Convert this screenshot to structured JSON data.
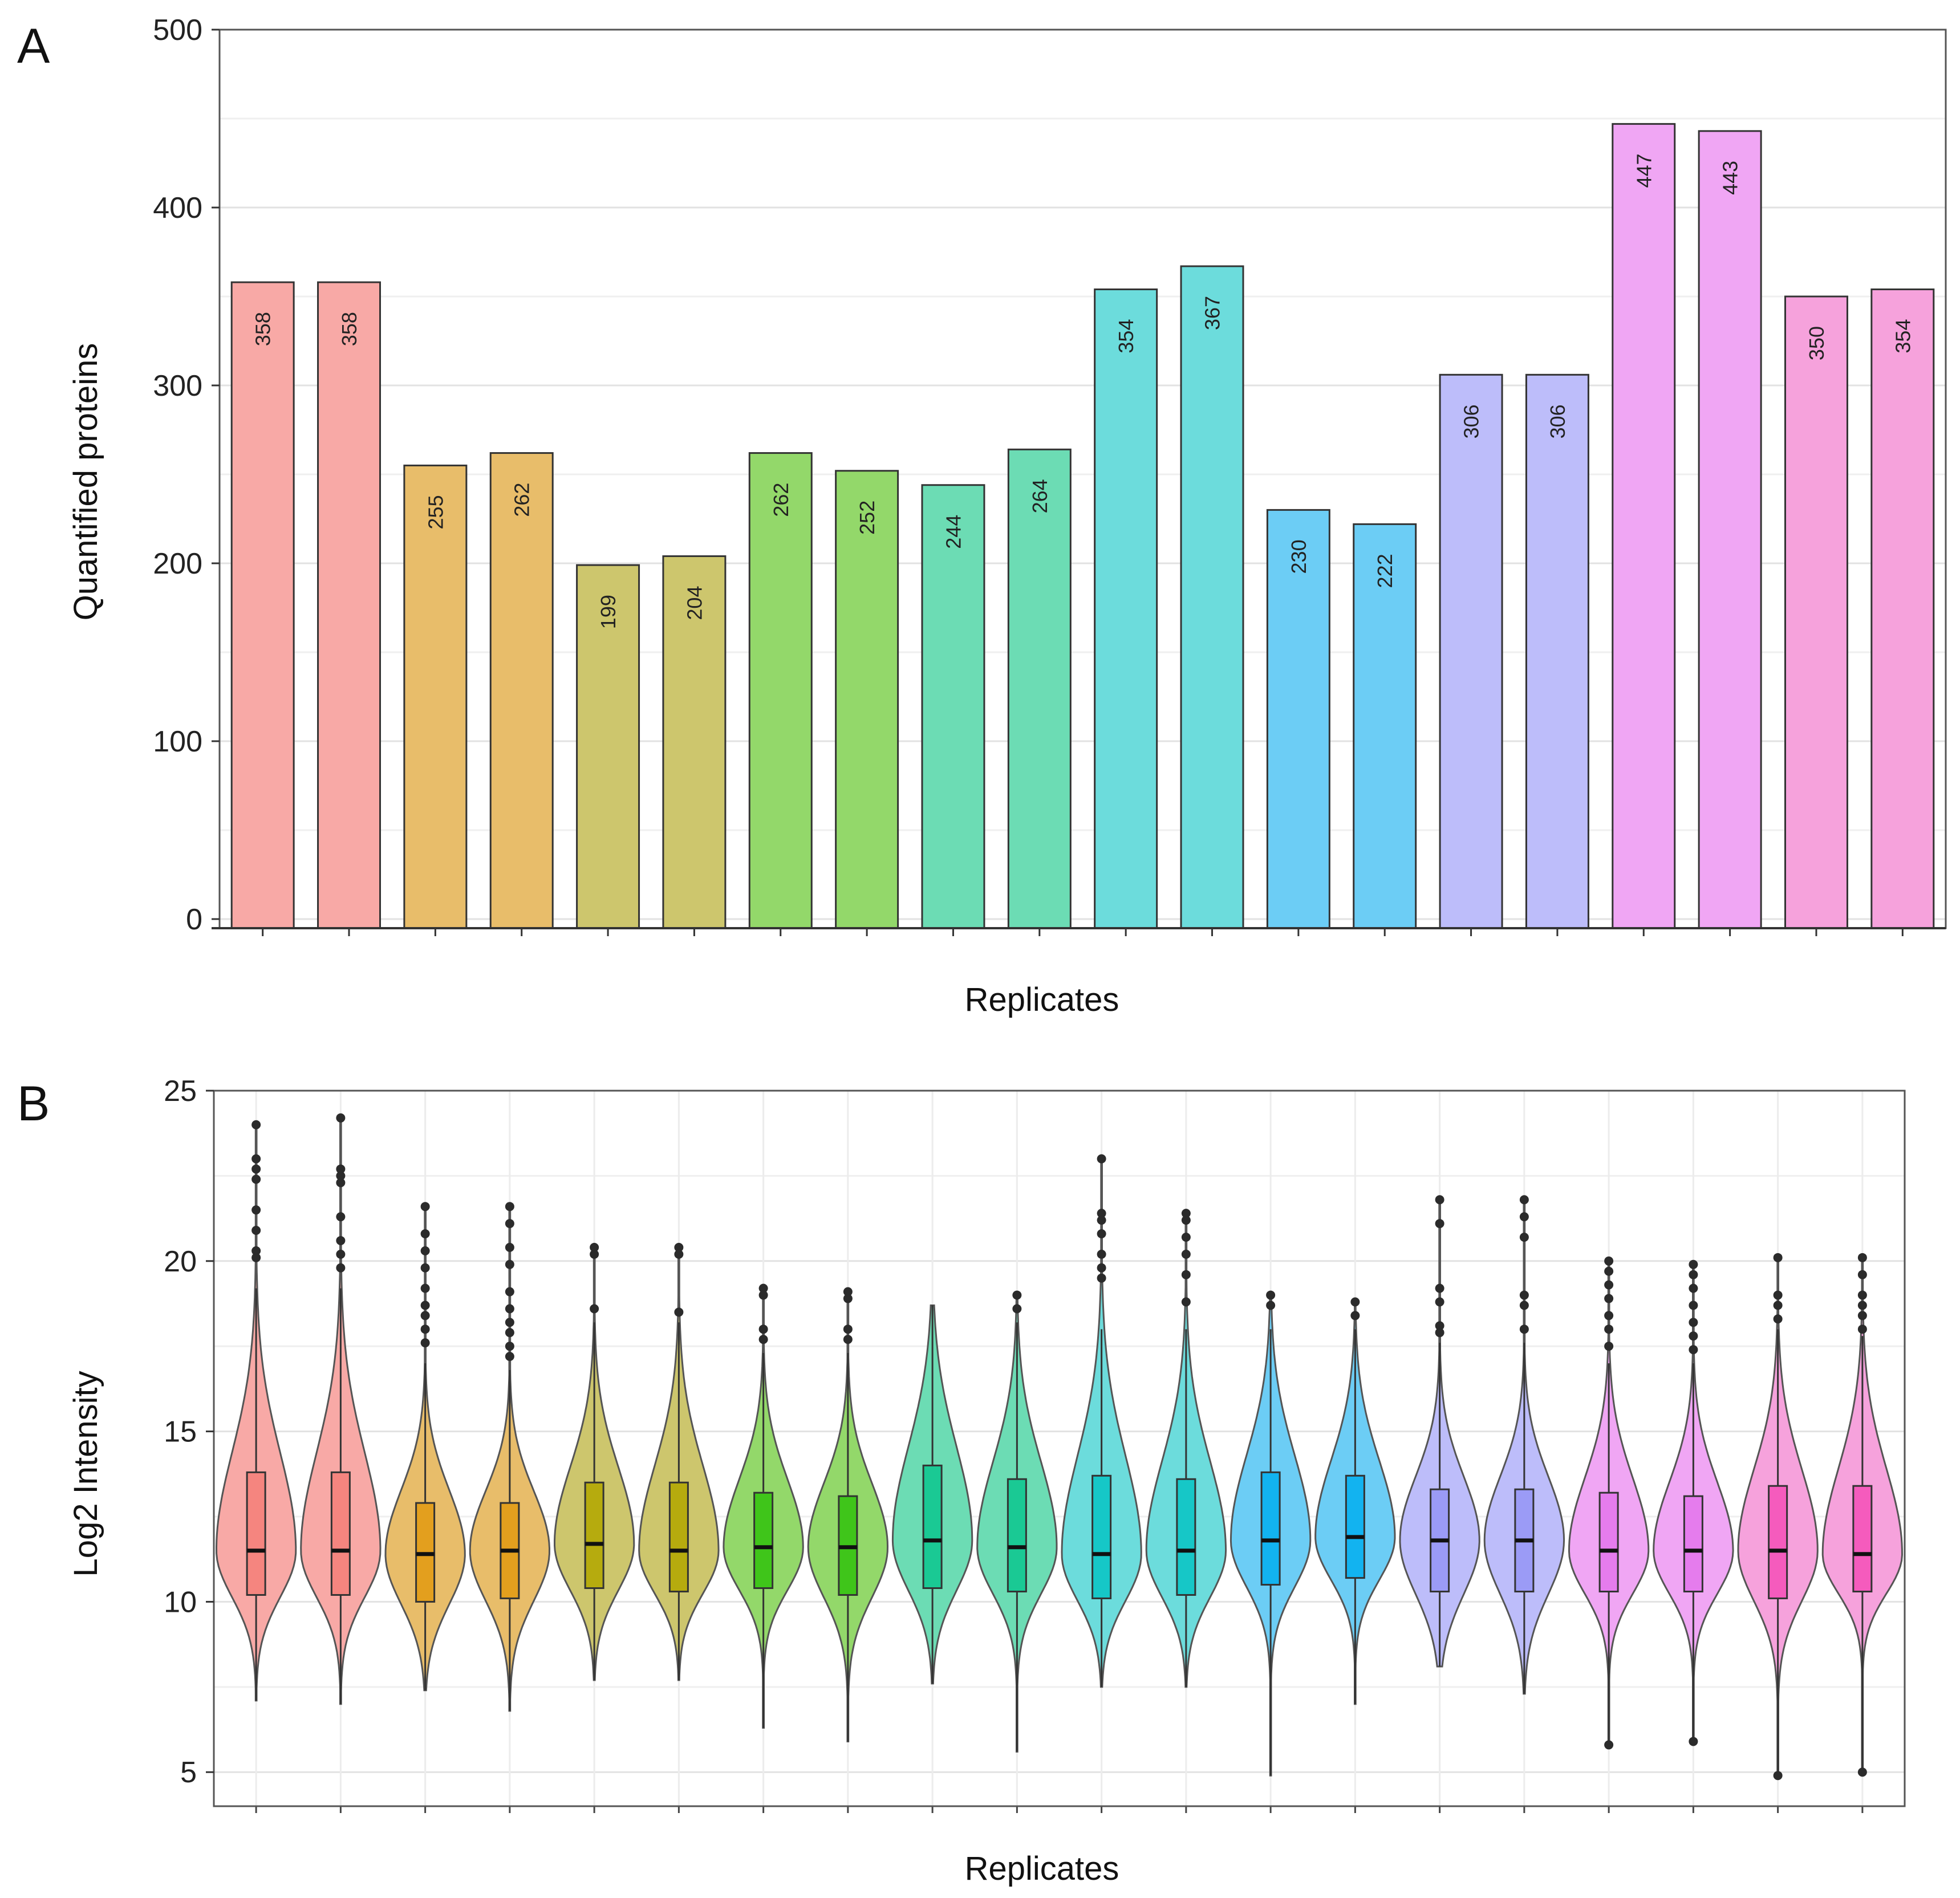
{
  "chart_data": [
    {
      "type": "bar",
      "panel_label": "A",
      "ylabel": "Quantified proteins",
      "xlabel": "Replicates",
      "ylim": [
        0,
        500
      ],
      "yticks": [
        "0",
        "100",
        "200",
        "300",
        "400",
        "500"
      ],
      "grid": true,
      "values": [
        358,
        358,
        255,
        262,
        199,
        204,
        262,
        252,
        244,
        264,
        354,
        367,
        230,
        222,
        306,
        306,
        447,
        443,
        350,
        354
      ],
      "value_labels": [
        "358",
        "358",
        "255",
        "262",
        "199",
        "204",
        "262",
        "252",
        "244",
        "264",
        "354",
        "367",
        "230",
        "222",
        "306",
        "306",
        "447",
        "443",
        "350",
        "354"
      ],
      "colors": [
        "#f8a9a6",
        "#f8a9a6",
        "#e8bd6a",
        "#e8bd6a",
        "#cdc66d",
        "#cdc66d",
        "#93d86a",
        "#93d86a",
        "#6cdcb4",
        "#6cdcb4",
        "#6cdcdc",
        "#6cdcdc",
        "#6ccdf5",
        "#6ccdf5",
        "#bdbdfa",
        "#bdbdfa",
        "#f0a6f4",
        "#f0a6f4",
        "#f6a2dc",
        "#f6a2dc"
      ]
    },
    {
      "type": "violin",
      "panel_label": "B",
      "ylabel": "Log2 Intensity",
      "xlabel": "Replicates",
      "ylim": [
        4,
        25
      ],
      "yticks": [
        "5",
        "10",
        "15",
        "20",
        "25"
      ],
      "grid": true,
      "series": [
        {
          "min": 7.1,
          "q1": 10.2,
          "median": 11.5,
          "q3": 13.8,
          "wmax": 19.2,
          "max": 24.0,
          "outliers": [
            24.0,
            23.0,
            22.7,
            22.4,
            21.5,
            20.9,
            20.3,
            20.1
          ],
          "color": "#f8a9a6",
          "box": "#f5857f"
        },
        {
          "min": 7.0,
          "q1": 10.2,
          "median": 11.5,
          "q3": 13.8,
          "wmax": 19.2,
          "max": 24.2,
          "outliers": [
            24.2,
            22.7,
            22.5,
            22.3,
            21.3,
            20.6,
            20.2,
            19.8
          ],
          "color": "#f8a9a6",
          "box": "#f5857f"
        },
        {
          "min": 7.4,
          "q1": 10.0,
          "median": 11.4,
          "q3": 12.9,
          "wmax": 17.0,
          "max": 21.6,
          "outliers": [
            21.6,
            20.8,
            20.3,
            19.8,
            19.2,
            18.7,
            18.4,
            18.0,
            17.6
          ],
          "color": "#e8bd6a",
          "box": "#e39f1e"
        },
        {
          "min": 6.8,
          "q1": 10.1,
          "median": 11.5,
          "q3": 12.9,
          "wmax": 16.8,
          "max": 21.6,
          "outliers": [
            21.6,
            21.1,
            20.4,
            19.9,
            19.1,
            18.6,
            18.2,
            17.9,
            17.5,
            17.2
          ],
          "color": "#e8bd6a",
          "box": "#e39f1e"
        },
        {
          "min": 7.7,
          "q1": 10.4,
          "median": 11.7,
          "q3": 13.5,
          "wmax": 18.2,
          "max": 20.4,
          "outliers": [
            20.4,
            20.2,
            18.6
          ],
          "color": "#cdc66d",
          "box": "#b6ab0e"
        },
        {
          "min": 7.7,
          "q1": 10.3,
          "median": 11.5,
          "q3": 13.5,
          "wmax": 18.2,
          "max": 20.4,
          "outliers": [
            20.4,
            20.2,
            18.5
          ],
          "color": "#cdc66d",
          "box": "#b6ab0e"
        },
        {
          "min": 6.3,
          "q1": 10.4,
          "median": 11.6,
          "q3": 13.2,
          "wmax": 17.3,
          "max": 19.2,
          "outliers": [
            19.2,
            19.0,
            18.0,
            17.7
          ],
          "color": "#93d86a",
          "box": "#3fc51a"
        },
        {
          "min": 5.9,
          "q1": 10.2,
          "median": 11.6,
          "q3": 13.1,
          "wmax": 17.3,
          "max": 19.1,
          "outliers": [
            19.1,
            18.9,
            18.0,
            17.7
          ],
          "color": "#93d86a",
          "box": "#3fc51a"
        },
        {
          "min": 7.6,
          "q1": 10.4,
          "median": 11.8,
          "q3": 14.0,
          "wmax": 18.7,
          "max": 18.7,
          "outliers": [],
          "color": "#6cdcb4",
          "box": "#1ac994"
        },
        {
          "min": 5.6,
          "q1": 10.3,
          "median": 11.6,
          "q3": 13.6,
          "wmax": 18.2,
          "max": 19.0,
          "outliers": [
            19.0,
            18.6
          ],
          "color": "#6cdcb4",
          "box": "#1ac994"
        },
        {
          "min": 7.5,
          "q1": 10.1,
          "median": 11.4,
          "q3": 13.7,
          "wmax": 18.0,
          "max": 23.0,
          "outliers": [
            23.0,
            21.4,
            21.2,
            20.8,
            20.2,
            19.8,
            19.5
          ],
          "color": "#6cdcdc",
          "box": "#16c7c7"
        },
        {
          "min": 7.5,
          "q1": 10.2,
          "median": 11.5,
          "q3": 13.6,
          "wmax": 18.0,
          "max": 21.4,
          "outliers": [
            21.4,
            21.2,
            20.7,
            20.2,
            19.6,
            18.8
          ],
          "color": "#6cdcdc",
          "box": "#16c7c7"
        },
        {
          "min": 4.9,
          "q1": 10.5,
          "median": 11.8,
          "q3": 13.8,
          "wmax": 18.0,
          "max": 19.0,
          "outliers": [
            19.0,
            18.7
          ],
          "color": "#6ccdf5",
          "box": "#12b3f0"
        },
        {
          "min": 7.0,
          "q1": 10.7,
          "median": 11.9,
          "q3": 13.7,
          "wmax": 18.0,
          "max": 18.8,
          "outliers": [
            18.8,
            18.4
          ],
          "color": "#6ccdf5",
          "box": "#12b3f0"
        },
        {
          "min": 8.1,
          "q1": 10.3,
          "median": 11.8,
          "q3": 13.3,
          "wmax": 17.6,
          "max": 21.8,
          "outliers": [
            21.8,
            21.1,
            19.2,
            18.8,
            18.1,
            17.9
          ],
          "color": "#bdbdfa",
          "box": "#9b9bf6"
        },
        {
          "min": 7.3,
          "q1": 10.3,
          "median": 11.8,
          "q3": 13.3,
          "wmax": 17.6,
          "max": 21.8,
          "outliers": [
            21.8,
            21.3,
            20.7,
            19.0,
            18.7,
            18.0
          ],
          "color": "#bdbdfa",
          "box": "#9b9bf6"
        },
        {
          "min": 5.8,
          "q1": 10.3,
          "median": 11.5,
          "q3": 13.2,
          "wmax": 17.0,
          "max": 20.0,
          "outliers": [
            20.0,
            19.7,
            19.3,
            18.9,
            18.4,
            18.0,
            17.5,
            5.8
          ],
          "color": "#f0a6f4",
          "box": "#e57ced"
        },
        {
          "min": 5.9,
          "q1": 10.3,
          "median": 11.5,
          "q3": 13.1,
          "wmax": 17.0,
          "max": 19.9,
          "outliers": [
            19.9,
            19.6,
            19.2,
            18.7,
            18.2,
            17.8,
            17.4,
            5.9
          ],
          "color": "#f0a6f4",
          "box": "#e57ced"
        },
        {
          "min": 4.9,
          "q1": 10.1,
          "median": 11.5,
          "q3": 13.4,
          "wmax": 18.0,
          "max": 20.1,
          "outliers": [
            20.1,
            19.0,
            18.7,
            18.3,
            4.9
          ],
          "color": "#f6a2dc",
          "box": "#f55bbd"
        },
        {
          "min": 5.0,
          "q1": 10.3,
          "median": 11.4,
          "q3": 13.4,
          "wmax": 17.8,
          "max": 20.1,
          "outliers": [
            20.1,
            19.6,
            19.0,
            18.7,
            18.4,
            18.0,
            5.0
          ],
          "color": "#f6a2dc",
          "box": "#f55bbd"
        }
      ]
    }
  ]
}
